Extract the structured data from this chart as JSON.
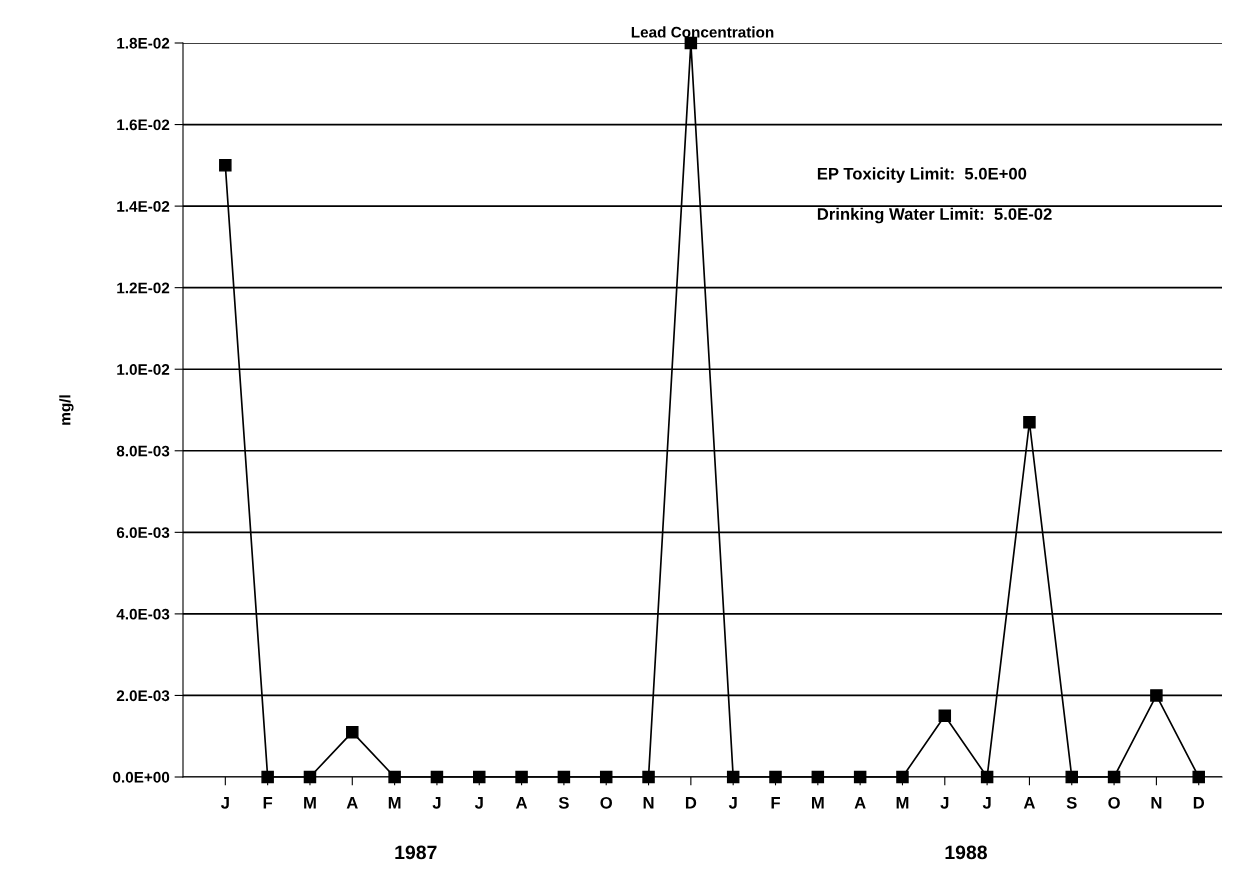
{
  "chart_data": {
    "type": "line",
    "title": "Lead Concentration",
    "ylabel": "mg/l",
    "categories": [
      "J",
      "F",
      "M",
      "A",
      "M",
      "J",
      "J",
      "A",
      "S",
      "O",
      "N",
      "D",
      "J",
      "F",
      "M",
      "A",
      "M",
      "J",
      "J",
      "A",
      "S",
      "O",
      "N",
      "D"
    ],
    "series": [
      {
        "color": "#000000",
        "values": [
          0.015,
          0,
          0,
          0.0011,
          0,
          0,
          0,
          0,
          0,
          0,
          0,
          0.018,
          0,
          0,
          0,
          0,
          0,
          0.0015,
          0,
          0.0087,
          0,
          0,
          0.002,
          0
        ]
      }
    ],
    "ylim": [
      0,
      0.018
    ],
    "yticks": [
      {
        "value": 0,
        "label": "0.0E+00"
      },
      {
        "value": 0.002,
        "label": "2.0E-03"
      },
      {
        "value": 0.004,
        "label": "4.0E-03"
      },
      {
        "value": 0.006,
        "label": "6.0E-03"
      },
      {
        "value": 0.008,
        "label": "8.0E-03"
      },
      {
        "value": 0.01,
        "label": "1.0E-02"
      },
      {
        "value": 0.012,
        "label": "1.2E-02"
      },
      {
        "value": 0.014,
        "label": "1.4E-02"
      },
      {
        "value": 0.016,
        "label": "1.6E-02"
      },
      {
        "value": 0.018,
        "label": "1.8E-02"
      }
    ],
    "grid": "y",
    "marker": "square",
    "line_style": "solid",
    "legend": false,
    "annotations": [
      "EP Toxicity Limit:  5.0E+00",
      "Drinking Water Limit:  5.0E-02",
      "1987",
      "1988"
    ]
  }
}
